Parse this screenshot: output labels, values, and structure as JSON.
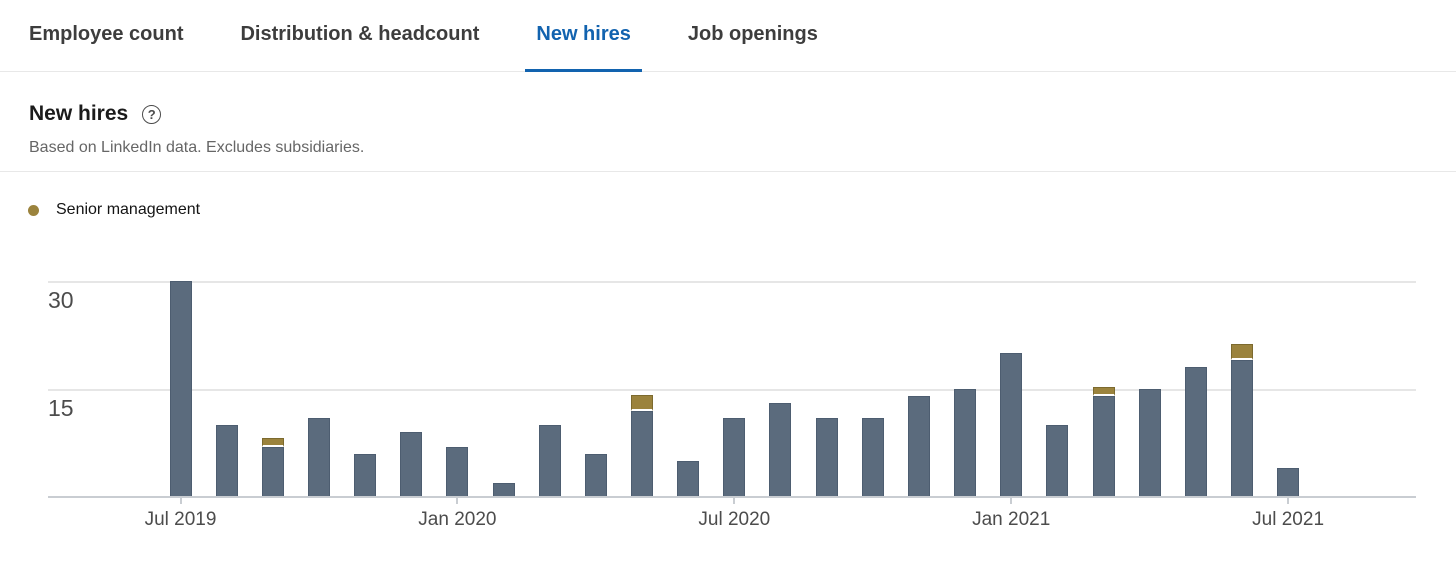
{
  "tabs": {
    "items": [
      {
        "label": "Employee count",
        "active": false
      },
      {
        "label": "Distribution & headcount",
        "active": false
      },
      {
        "label": "New hires",
        "active": true
      },
      {
        "label": "Job openings",
        "active": false
      }
    ],
    "active_color": "#1263af"
  },
  "header": {
    "title": "New hires",
    "help_icon": "question-mark-circle-icon",
    "subtitle": "Based on LinkedIn data. Excludes subsidiaries."
  },
  "legend": {
    "items": [
      {
        "label": "Senior management",
        "color": "#9b833d"
      }
    ]
  },
  "chart_data": {
    "type": "bar",
    "stacked": true,
    "x": [
      "Jul 2019",
      "Aug 2019",
      "Sep 2019",
      "Oct 2019",
      "Nov 2019",
      "Dec 2019",
      "Jan 2020",
      "Feb 2020",
      "Mar 2020",
      "Apr 2020",
      "May 2020",
      "Jun 2020",
      "Jul 2020",
      "Aug 2020",
      "Sep 2020",
      "Oct 2020",
      "Nov 2020",
      "Dec 2020",
      "Jan 2021",
      "Feb 2021",
      "Mar 2021",
      "Apr 2021",
      "May 2021",
      "Jun 2021",
      "Jul 2021"
    ],
    "series": [
      {
        "name": "New hires",
        "color": "#5b6b7d",
        "values": [
          30,
          10,
          7,
          11,
          6,
          9,
          7,
          2,
          10,
          6,
          12,
          5,
          11,
          13,
          11,
          11,
          14,
          15,
          20,
          10,
          14,
          15,
          18,
          19,
          4
        ]
      },
      {
        "name": "Senior management",
        "color": "#9b833d",
        "values": [
          0,
          0,
          1,
          0,
          0,
          0,
          0,
          0,
          0,
          0,
          2,
          0,
          0,
          0,
          0,
          0,
          0,
          0,
          0,
          0,
          1,
          0,
          0,
          2,
          0
        ]
      }
    ],
    "x_tick_labels": [
      "Jul 2019",
      "Jan 2020",
      "Jul 2020",
      "Jan 2021",
      "Jul 2021"
    ],
    "x_tick_indices": [
      0,
      6,
      12,
      18,
      24
    ],
    "y_ticks": [
      15,
      30
    ],
    "ylim": [
      0,
      31
    ],
    "grid": true,
    "legend_position": "top-left"
  }
}
